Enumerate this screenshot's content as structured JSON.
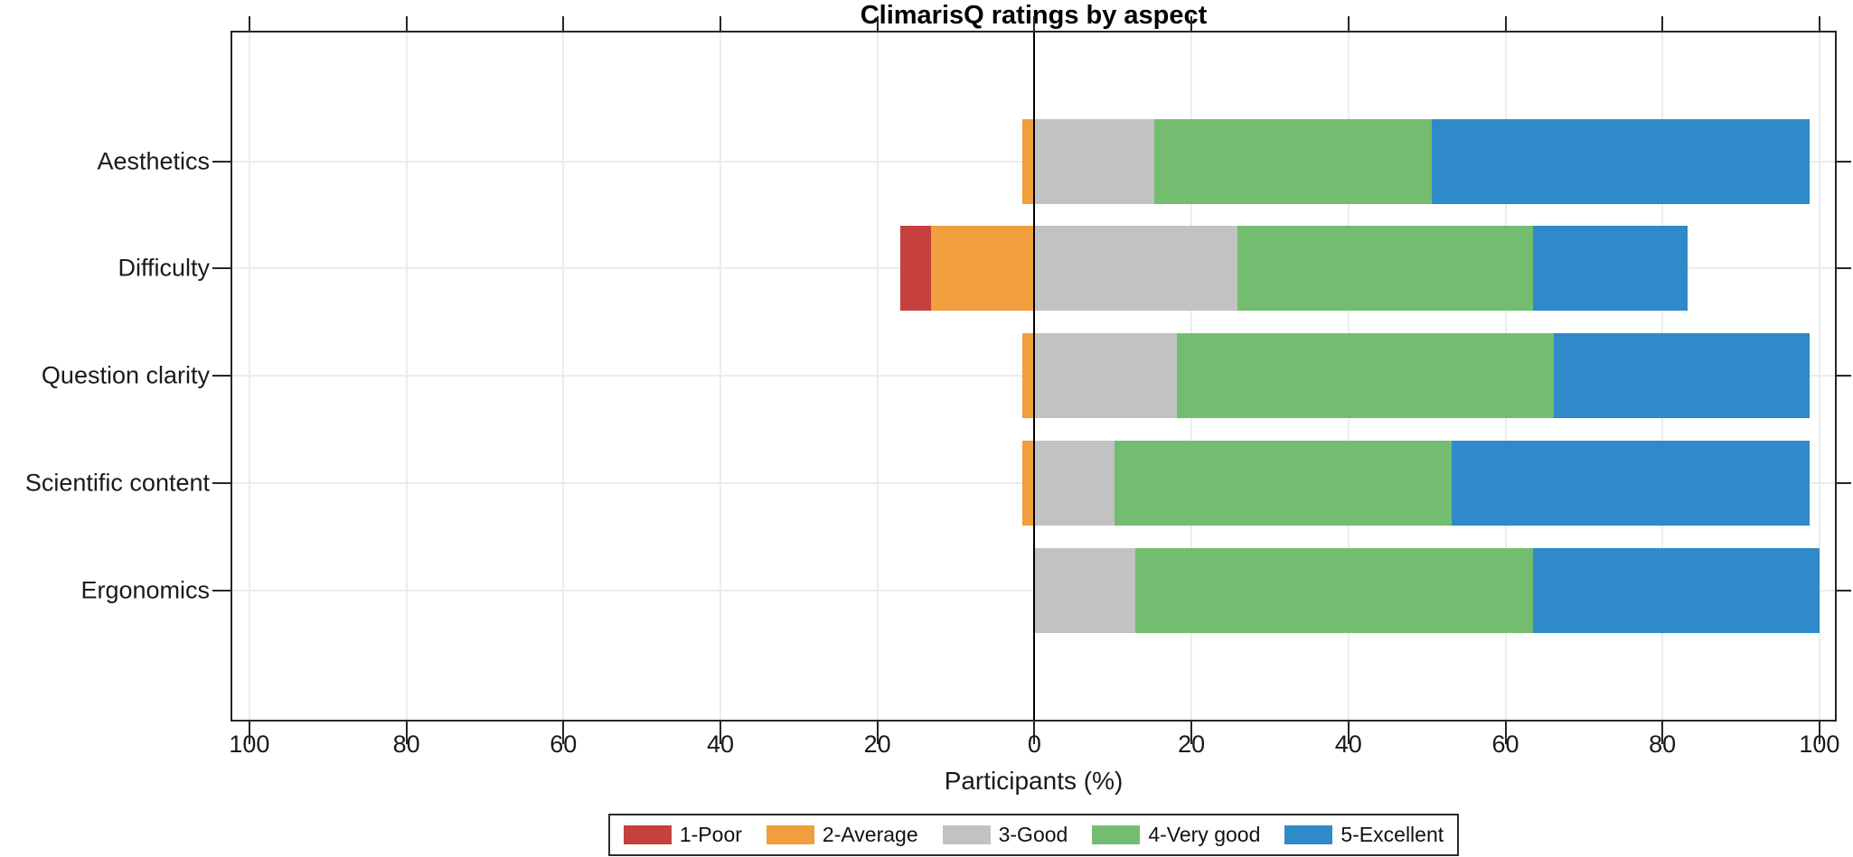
{
  "chart_data": {
    "type": "bar",
    "variant": "diverging-stacked-horizontal-likert",
    "title": "ClimarisQ ratings by aspect",
    "xlabel": "Participants (%)",
    "ylabel": "",
    "categories": [
      "Aesthetics",
      "Difficulty",
      "Question clarity",
      "Scientific content",
      "Ergonomics"
    ],
    "series": [
      {
        "name": "1-Poor",
        "color": "#c6403d",
        "side": "negative",
        "values": [
          0,
          3.9,
          0,
          0,
          0
        ]
      },
      {
        "name": "2-Average",
        "color": "#f09e3e",
        "side": "negative",
        "values": [
          1.5,
          13.2,
          1.5,
          1.5,
          0
        ]
      },
      {
        "name": "3-Good",
        "color": "#c2c2c2",
        "side": "positive",
        "values": [
          15.3,
          25.9,
          18.1,
          10.2,
          12.8
        ]
      },
      {
        "name": "4-Very good",
        "color": "#74bd70",
        "side": "positive",
        "values": [
          35.3,
          37.6,
          48.1,
          43.0,
          50.7
        ]
      },
      {
        "name": "5-Excellent",
        "color": "#2e8ac8",
        "side": "positive",
        "values": [
          48.1,
          19.7,
          32.5,
          45.5,
          36.5
        ]
      }
    ],
    "x_tick_values": [
      -100,
      -80,
      -60,
      -40,
      -20,
      0,
      20,
      40,
      60,
      80,
      100
    ],
    "x_tick_labels": [
      "100",
      "80",
      "60",
      "40",
      "20",
      "0",
      "20",
      "40",
      "60",
      "80",
      "100"
    ],
    "xlim": [
      -102.4,
      102.3
    ],
    "grid": true,
    "zero_line": true,
    "legend_position": "bottom",
    "colors": {
      "background": "#ffffff",
      "frame": "#262626",
      "grid": "#ececec",
      "zero_line": "#000000",
      "text": "#1a1a1a"
    }
  }
}
